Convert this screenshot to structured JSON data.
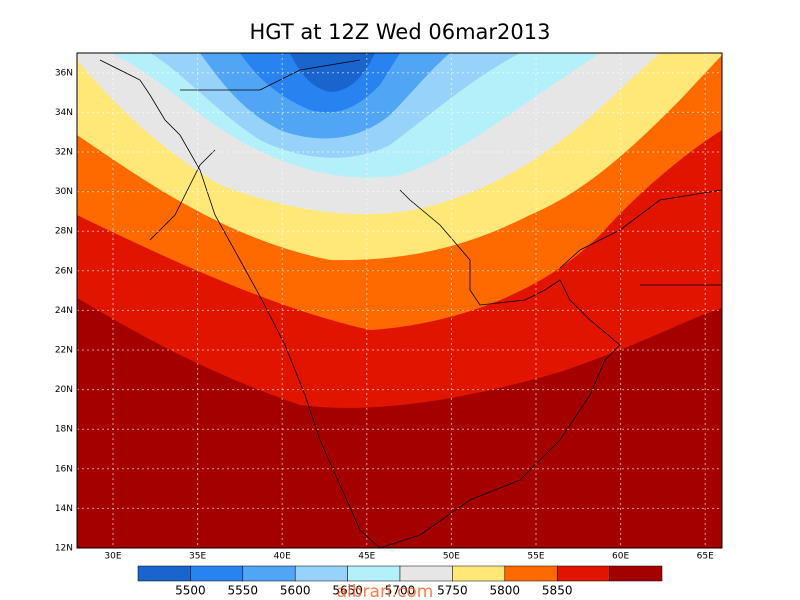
{
  "title": "HGT at 12Z Wed 06mar2013",
  "map": {
    "lat_labels": [
      "12N",
      "14N",
      "16N",
      "18N",
      "20N",
      "22N",
      "24N",
      "26N",
      "28N",
      "30N",
      "32N",
      "34N",
      "36N"
    ],
    "lon_labels": [
      "30E",
      "35E",
      "40E",
      "45E",
      "50E",
      "55E",
      "60E",
      "65E"
    ]
  },
  "colorbar": {
    "labels": [
      "5500",
      "5550",
      "5600",
      "5650",
      "5700",
      "5750",
      "5800",
      "5850"
    ],
    "colors": [
      "#1964cd",
      "#2882f0",
      "#50a5f5",
      "#96d2fa",
      "#b4f0fa",
      "#e6e6e6",
      "#ffe878",
      "#ff6a00",
      "#e11400",
      "#a50000"
    ]
  },
  "watermark": "albrari.com"
}
